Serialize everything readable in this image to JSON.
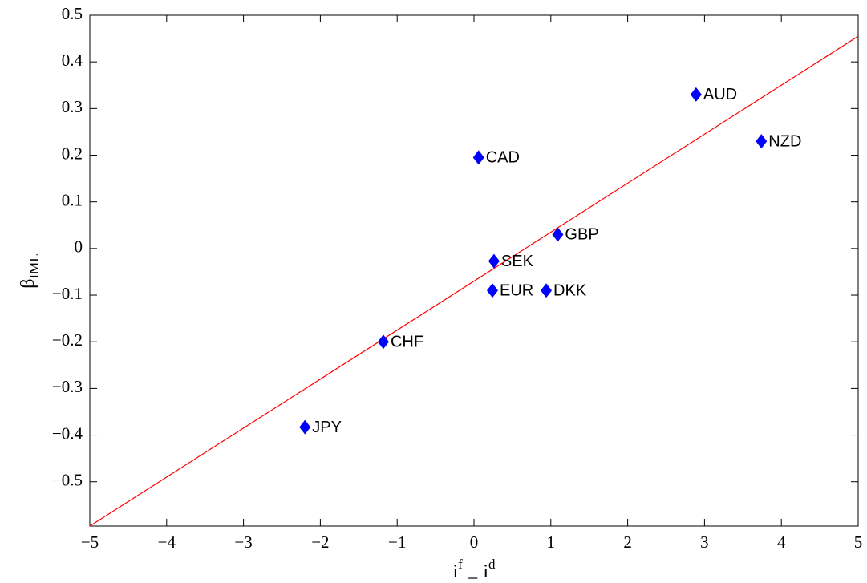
{
  "chart_data": {
    "type": "scatter",
    "xlabel": [
      "i",
      "f",
      " − ",
      "i",
      "d"
    ],
    "ylabel": [
      "β",
      "IML"
    ],
    "labels": [
      "AUD",
      "NZD",
      "CAD",
      "GBP",
      "SEK",
      "EUR",
      "DKK",
      "CHF",
      "JPY"
    ],
    "x": [
      2.89,
      3.74,
      0.06,
      1.09,
      0.26,
      0.24,
      0.94,
      -1.18,
      -2.2
    ],
    "y": [
      0.33,
      0.23,
      0.195,
      0.03,
      -0.027,
      -0.09,
      -0.09,
      -0.2,
      -0.383
    ],
    "color": "#0000ff",
    "fit_line": {
      "x": [
        -5,
        5
      ],
      "y": [
        -0.595,
        0.455
      ],
      "color": "#ff0000"
    },
    "xlim": [
      -5,
      5
    ],
    "ylim": [
      -0.595,
      0.5
    ],
    "xticks": [
      {
        "value": -5,
        "label": "−5"
      },
      {
        "value": -4,
        "label": "−4"
      },
      {
        "value": -3,
        "label": "−3"
      },
      {
        "value": -2,
        "label": "−2"
      },
      {
        "value": -1,
        "label": "−1"
      },
      0,
      1,
      2,
      3,
      4,
      5
    ],
    "yticks": [
      {
        "value": -0.5,
        "label": "−0.5"
      },
      {
        "value": -0.4,
        "label": "−0.4"
      },
      {
        "value": -0.3,
        "label": "−0.3"
      },
      {
        "value": -0.2,
        "label": "−0.2"
      },
      {
        "value": -0.1,
        "label": "−0.1"
      },
      0,
      0.1,
      0.2,
      0.3,
      0.4,
      0.5
    ]
  }
}
